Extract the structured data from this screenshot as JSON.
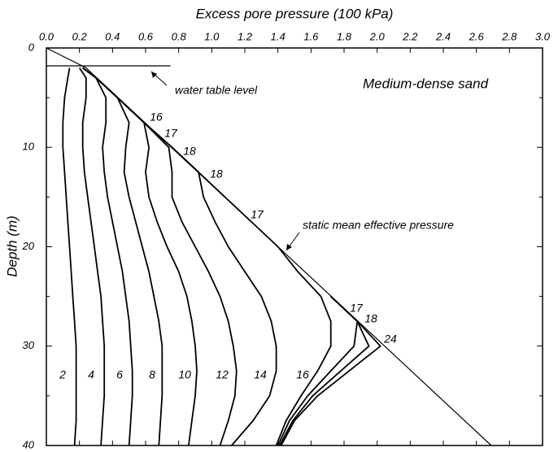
{
  "chart_data": {
    "type": "line",
    "title": "Excess pore pressure (100 kPa)",
    "y_label": "Depth (m)",
    "xlim": [
      0,
      3
    ],
    "ylim": [
      0,
      40
    ],
    "xticks": [
      {
        "value": 0,
        "label": "0.0"
      },
      0.2,
      0.4,
      0.6,
      0.8,
      {
        "value": 1,
        "label": "1.0"
      },
      1.2,
      1.4,
      1.6,
      1.8,
      {
        "value": 2,
        "label": "2.0"
      },
      2.2,
      2.4,
      2.6,
      2.8,
      {
        "value": 3,
        "label": "3.0"
      }
    ],
    "yticks": [
      0,
      10,
      20,
      30,
      40
    ],
    "yminorticks": [
      5,
      15,
      25,
      35
    ],
    "color": "#000000",
    "depth": [
      2,
      3,
      5,
      7.5,
      10,
      12.5,
      15,
      17.5,
      20,
      22.5,
      25,
      27.5,
      30,
      32.5,
      35,
      37.5,
      40
    ],
    "series": [
      {
        "name": "2",
        "values": [
          0.14,
          0.13,
          0.11,
          0.1,
          0.1,
          0.11,
          0.12,
          0.13,
          0.14,
          0.15,
          0.16,
          0.17,
          0.18,
          0.18,
          0.18,
          0.18,
          0.17
        ]
      },
      {
        "name": "4",
        "values": [
          0.2,
          0.24,
          0.24,
          0.22,
          0.22,
          0.23,
          0.25,
          0.27,
          0.29,
          0.31,
          0.33,
          0.34,
          0.35,
          0.35,
          0.35,
          0.34,
          0.33
        ]
      },
      {
        "name": "6",
        "values": [
          0.22,
          0.3,
          0.36,
          0.36,
          0.34,
          0.35,
          0.37,
          0.4,
          0.43,
          0.46,
          0.48,
          0.5,
          0.51,
          0.52,
          0.52,
          0.51,
          0.5
        ]
      },
      {
        "name": "8",
        "values": [
          0.22,
          0.3,
          0.43,
          0.5,
          0.48,
          0.47,
          0.5,
          0.54,
          0.58,
          0.62,
          0.65,
          0.68,
          0.7,
          0.7,
          0.7,
          0.69,
          0.68
        ]
      },
      {
        "name": "10",
        "values": [
          0.22,
          0.3,
          0.43,
          0.59,
          0.62,
          0.6,
          0.62,
          0.67,
          0.73,
          0.8,
          0.85,
          0.88,
          0.9,
          0.91,
          0.9,
          0.88,
          0.86
        ]
      },
      {
        "name": "12",
        "values": [
          0.22,
          0.3,
          0.43,
          0.59,
          0.74,
          0.76,
          0.76,
          0.82,
          0.9,
          0.98,
          1.05,
          1.1,
          1.13,
          1.15,
          1.14,
          1.1,
          1.05
        ]
      },
      {
        "name": "14",
        "values": [
          0.22,
          0.3,
          0.43,
          0.59,
          0.76,
          0.92,
          0.95,
          1.02,
          1.1,
          1.2,
          1.3,
          1.36,
          1.39,
          1.39,
          1.35,
          1.25,
          1.12
        ]
      },
      {
        "name": "16",
        "values": [
          0.22,
          0.3,
          0.43,
          0.59,
          0.76,
          0.92,
          1.08,
          1.24,
          1.4,
          1.52,
          1.66,
          1.72,
          1.72,
          1.64,
          1.54,
          1.45,
          1.39
        ]
      },
      {
        "name": "17",
        "values": [
          null,
          null,
          null,
          null,
          null,
          null,
          null,
          null,
          null,
          null,
          1.72,
          1.88,
          1.86,
          1.72,
          1.58,
          1.47,
          1.4
        ]
      },
      {
        "name": "18",
        "values": [
          null,
          null,
          null,
          null,
          null,
          null,
          null,
          null,
          null,
          null,
          1.72,
          1.88,
          1.95,
          1.78,
          1.61,
          1.49,
          1.41
        ]
      },
      {
        "name": "24",
        "values": [
          null,
          null,
          null,
          null,
          null,
          null,
          null,
          null,
          null,
          null,
          1.72,
          1.88,
          2.02,
          1.83,
          1.64,
          1.5,
          1.42
        ]
      }
    ],
    "reference_lines": [
      {
        "x": [
          0,
          0.75
        ],
        "y": [
          1.8,
          1.8
        ]
      },
      {
        "x": [
          0,
          0.24,
          2.69
        ],
        "y": [
          0,
          2,
          40
        ]
      }
    ],
    "annotations": [
      "Medium-dense sand",
      "water table level",
      "static mean effective pressure"
    ],
    "curve_labels": [
      "16",
      "17",
      "18",
      "18",
      "17"
    ]
  }
}
